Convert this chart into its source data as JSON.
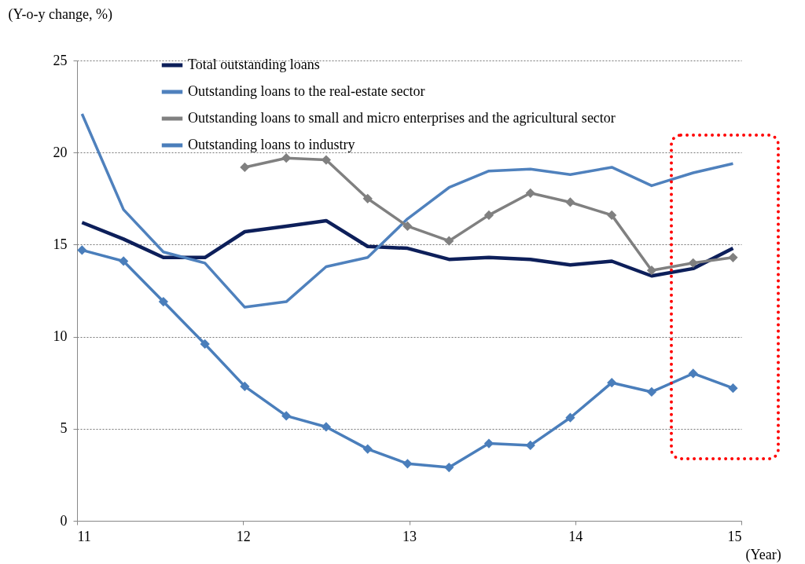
{
  "chart_data": {
    "type": "line",
    "ylabel": "(Y-o-y change, %)",
    "xlabel": "(Year)",
    "x": [
      11.03,
      11.28,
      11.52,
      11.77,
      12.01,
      12.26,
      12.5,
      12.75,
      12.99,
      13.24,
      13.48,
      13.73,
      13.97,
      14.22,
      14.46,
      14.71,
      14.95
    ],
    "xlim": [
      11,
      15
    ],
    "xticks": [
      11,
      12,
      13,
      14,
      15
    ],
    "ylim": [
      0,
      25
    ],
    "yticks": [
      0,
      5,
      10,
      15,
      20,
      25
    ],
    "grid": "y",
    "legend": "top left",
    "series": [
      {
        "name": "Total outstanding loans",
        "color": "#0d1f5a",
        "marker": "none",
        "values": [
          16.2,
          15.3,
          14.3,
          14.3,
          15.7,
          16.0,
          16.3,
          14.9,
          14.8,
          14.2,
          14.3,
          14.2,
          13.9,
          14.1,
          13.3,
          13.7,
          14.8
        ]
      },
      {
        "name": "Outstanding loans to the real-estate sector",
        "color": "#4f81bd",
        "marker": "none",
        "values": [
          22.1,
          16.9,
          14.6,
          14.0,
          11.6,
          11.9,
          13.8,
          14.3,
          16.4,
          18.1,
          19.0,
          19.1,
          18.8,
          19.2,
          18.2,
          18.9,
          19.4
        ]
      },
      {
        "name": "Outstanding loans to small and micro enterprises and the agricultural sector",
        "color": "#808080",
        "marker": "diamond",
        "values": [
          null,
          null,
          null,
          null,
          19.2,
          19.7,
          19.6,
          17.5,
          16.0,
          15.2,
          16.6,
          17.8,
          17.3,
          16.6,
          13.6,
          14.0,
          14.3
        ]
      },
      {
        "name": "Outstanding loans to industry",
        "color": "#4a7ebb",
        "marker": "diamond",
        "values": [
          14.7,
          14.1,
          11.9,
          9.6,
          7.3,
          5.7,
          5.1,
          3.9,
          3.1,
          2.9,
          4.2,
          4.1,
          5.6,
          7.5,
          7.0,
          8.0,
          7.2
        ]
      }
    ]
  }
}
